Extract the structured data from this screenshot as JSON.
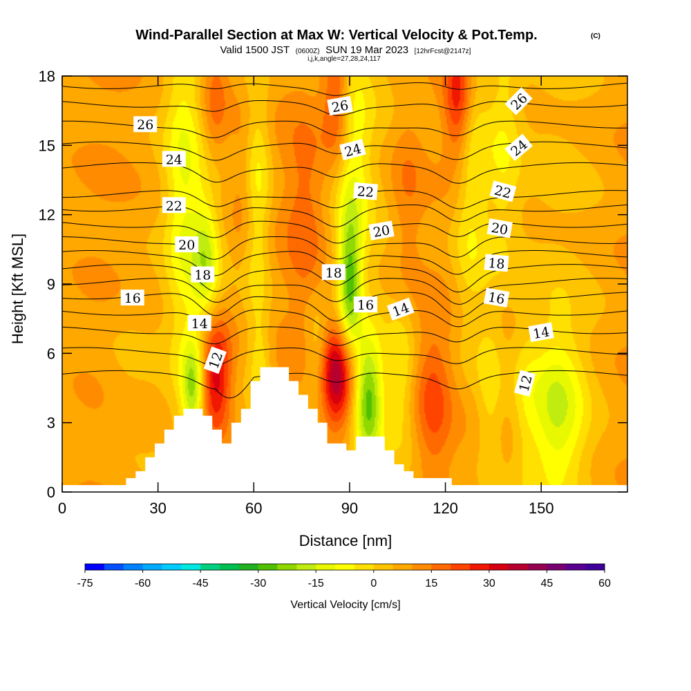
{
  "title": {
    "main": "Wind-Parallel Section at Max W: Vertical Velocity & Pot.Temp.",
    "copyright": "(C)",
    "valid_prefix": "Valid 1500 JST",
    "valid_utc": "(0600Z)",
    "valid_date": "SUN 19 Mar 2023",
    "forecast": "[12hrFcst@2147z]",
    "indices": "i,j,k,angle=27,28,24,117"
  },
  "chart_data": {
    "type": "contour-section",
    "xlabel": "Distance [nm]",
    "ylabel": "Height [Kft MSL]",
    "xlim": [
      0,
      177
    ],
    "ylim": [
      0,
      18
    ],
    "x_ticks": [
      0,
      30,
      60,
      90,
      120,
      150
    ],
    "y_ticks": [
      0,
      3,
      6,
      9,
      12,
      15,
      18
    ],
    "colorbar": {
      "label": "Vertical Velocity [cm/s]",
      "ticks": [
        -75,
        -60,
        -45,
        -30,
        -15,
        0,
        15,
        30,
        45,
        60
      ],
      "tick_labels": [
        "-75",
        "-60",
        "-45",
        "-30",
        "-15",
        "0",
        "15",
        "30",
        "45",
        "60"
      ],
      "min": -75,
      "max": 60,
      "step": 5,
      "colors": [
        "#0000ff",
        "#0050ff",
        "#0082ff",
        "#00aaff",
        "#00ccff",
        "#00e8e0",
        "#00d080",
        "#00c050",
        "#20b020",
        "#50c000",
        "#90d800",
        "#c0ec10",
        "#e8f800",
        "#ffff00",
        "#ffe000",
        "#ffc400",
        "#ffa800",
        "#ff8c00",
        "#ff6a00",
        "#ff4400",
        "#f01800",
        "#d80010",
        "#b8002e",
        "#980050",
        "#780070",
        "#5a0090",
        "#40009a"
      ]
    },
    "vertical_velocity_features": [
      {
        "x": 48,
        "y": 5.0,
        "w": 30,
        "sx": 3.5,
        "sy": 1.8
      },
      {
        "x": 86,
        "y": 5.0,
        "w": 33,
        "sx": 3.5,
        "sy": 1.6
      },
      {
        "x": 116,
        "y": 4.0,
        "w": 14,
        "sx": 4.0,
        "sy": 2.5
      },
      {
        "x": 48,
        "y": 17.0,
        "w": 12,
        "sx": 3.0,
        "sy": 2.0
      },
      {
        "x": 86,
        "y": 17.0,
        "w": 18,
        "sx": 3.0,
        "sy": 2.0
      },
      {
        "x": 124,
        "y": 17.0,
        "w": 22,
        "sx": 3.0,
        "sy": 2.0
      },
      {
        "x": 76,
        "y": 12.0,
        "w": 9,
        "sx": 4.0,
        "sy": 3.0
      },
      {
        "x": 108,
        "y": 13.0,
        "w": 9,
        "sx": 4.0,
        "sy": 3.0
      },
      {
        "x": 57,
        "y": 13.5,
        "w": 7,
        "sx": 3.0,
        "sy": 2.5
      },
      {
        "x": 41,
        "y": 4.5,
        "w": -25,
        "sx": 2.5,
        "sy": 1.5
      },
      {
        "x": 96,
        "y": 4.0,
        "w": -32,
        "sx": 3.0,
        "sy": 1.8
      },
      {
        "x": 155,
        "y": 3.5,
        "w": -20,
        "sx": 6.0,
        "sy": 2.5
      },
      {
        "x": 38,
        "y": 13.0,
        "w": -15,
        "sx": 4.0,
        "sy": 5.0
      },
      {
        "x": 45,
        "y": 10.0,
        "w": -20,
        "sx": 3.0,
        "sy": 2.0
      },
      {
        "x": 61,
        "y": 13.0,
        "w": -15,
        "sx": 3.0,
        "sy": 4.0
      },
      {
        "x": 90,
        "y": 9.0,
        "w": -28,
        "sx": 2.5,
        "sy": 2.0
      },
      {
        "x": 91,
        "y": 14.0,
        "w": -15,
        "sx": 4.0,
        "sy": 4.0
      },
      {
        "x": 128,
        "y": 13.0,
        "w": -15,
        "sx": 4.0,
        "sy": 5.0
      },
      {
        "x": 138,
        "y": 15.0,
        "w": -12,
        "sx": 4.0,
        "sy": 4.0
      },
      {
        "x": 80,
        "y": 6.0,
        "w": -10,
        "sx": 2.5,
        "sy": 1.5
      },
      {
        "x": 62,
        "y": 5.5,
        "w": -10,
        "sx": 2.5,
        "sy": 1.5
      },
      {
        "x": 106,
        "y": 5.0,
        "w": -10,
        "sx": 3.0,
        "sy": 2.0
      },
      {
        "x": 134,
        "y": 4.0,
        "w": -10,
        "sx": 3.0,
        "sy": 3.0
      },
      {
        "x": 145,
        "y": 4.0,
        "w": -6,
        "sx": 3.0,
        "sy": 3.0
      },
      {
        "x": 20,
        "y": 5.0,
        "w": -4,
        "sx": 6.0,
        "sy": 3.0
      }
    ],
    "terrain": {
      "x": [
        0,
        20,
        20,
        23,
        23,
        26,
        26,
        29,
        29,
        32,
        32,
        35,
        35,
        38,
        38,
        41,
        41,
        44,
        44,
        47,
        47,
        50,
        50,
        53,
        53,
        56,
        56,
        59,
        59,
        62,
        62,
        65,
        65,
        68,
        68,
        71,
        71,
        74,
        74,
        77,
        77,
        80,
        80,
        83,
        83,
        86,
        86,
        89,
        89,
        92,
        92,
        95,
        95,
        98,
        98,
        101,
        101,
        104,
        104,
        107,
        107,
        110,
        110,
        113,
        113,
        116,
        116,
        119,
        119,
        122,
        122,
        177
      ],
      "y": [
        0.3,
        0.3,
        0.6,
        0.6,
        0.9,
        0.9,
        1.5,
        1.5,
        2.1,
        2.1,
        2.7,
        2.7,
        3.3,
        3.3,
        3.6,
        3.6,
        3.6,
        3.6,
        3.3,
        3.3,
        2.7,
        2.7,
        2.1,
        2.1,
        3.0,
        3.0,
        3.6,
        3.6,
        4.8,
        4.8,
        5.4,
        5.4,
        5.4,
        5.4,
        5.4,
        5.4,
        4.8,
        4.8,
        4.2,
        4.2,
        3.6,
        3.6,
        3.0,
        3.0,
        2.1,
        2.1,
        2.1,
        2.1,
        1.8,
        1.8,
        2.4,
        2.4,
        2.4,
        2.4,
        2.4,
        2.4,
        1.8,
        1.8,
        1.2,
        1.2,
        0.9,
        0.9,
        0.6,
        0.6,
        0.6,
        0.6,
        0.6,
        0.6,
        0.6,
        0.6,
        0.3,
        0.3
      ]
    },
    "theta_contours": [
      {
        "label": "12",
        "base": 5.1,
        "dip": 0.5,
        "x_bulge": [
          48,
          60
        ]
      },
      {
        "label": "13",
        "base": 6.1,
        "dip": 0.5
      },
      {
        "label": "14",
        "base": 7.0,
        "dip": 0.6
      },
      {
        "label": "15",
        "base": 7.8,
        "dip": 0.8
      },
      {
        "label": "16",
        "base": 8.5,
        "dip": 1.0
      },
      {
        "label": "17",
        "base": 9.1,
        "dip": 0.9
      },
      {
        "label": "18",
        "base": 9.7,
        "dip": 0.9
      },
      {
        "label": "19",
        "base": 10.3,
        "dip": 0.8
      },
      {
        "label": "20",
        "base": 10.9,
        "dip": 0.8
      },
      {
        "label": "21",
        "base": 11.6,
        "dip": 0.7
      },
      {
        "label": "22",
        "base": 12.3,
        "dip": 0.7
      },
      {
        "label": "23",
        "base": 12.9,
        "dip": 0.6
      },
      {
        "label": "24",
        "base": 14.1,
        "dip": 0.6
      },
      {
        "label": "25",
        "base": 15.0,
        "dip": 0.5
      },
      {
        "label": "26",
        "base": 15.9,
        "dip": 0.5
      },
      {
        "label": "27",
        "base": 16.8,
        "dip": 0.4
      },
      {
        "label": "28",
        "base": 17.6,
        "dip": 0.3
      }
    ],
    "contour_labels": [
      {
        "text": "26",
        "x": 26,
        "y": 15.9,
        "angle": 0
      },
      {
        "text": "24",
        "x": 35,
        "y": 14.4,
        "angle": 0
      },
      {
        "text": "22",
        "x": 35,
        "y": 12.4,
        "angle": 0
      },
      {
        "text": "20",
        "x": 39,
        "y": 10.7,
        "angle": 0
      },
      {
        "text": "18",
        "x": 44,
        "y": 9.4,
        "angle": 0
      },
      {
        "text": "16",
        "x": 22,
        "y": 8.4,
        "angle": 0
      },
      {
        "text": "14",
        "x": 43,
        "y": 7.3,
        "angle": 0
      },
      {
        "text": "12",
        "x": 48,
        "y": 5.7,
        "angle": -70
      },
      {
        "text": "26",
        "x": 87,
        "y": 16.7,
        "angle": -10
      },
      {
        "text": "24",
        "x": 91,
        "y": 14.8,
        "angle": -15
      },
      {
        "text": "22",
        "x": 95,
        "y": 13.0,
        "angle": 5
      },
      {
        "text": "20",
        "x": 100,
        "y": 11.3,
        "angle": -10
      },
      {
        "text": "18",
        "x": 85,
        "y": 9.5,
        "angle": 0
      },
      {
        "text": "16",
        "x": 95,
        "y": 8.1,
        "angle": 0
      },
      {
        "text": "14",
        "x": 106,
        "y": 7.9,
        "angle": -20
      },
      {
        "text": "22",
        "x": 138,
        "y": 13.0,
        "angle": 15
      },
      {
        "text": "20",
        "x": 137,
        "y": 11.4,
        "angle": 10
      },
      {
        "text": "18",
        "x": 136,
        "y": 9.9,
        "angle": 5
      },
      {
        "text": "16",
        "x": 136,
        "y": 8.4,
        "angle": 10
      },
      {
        "text": "14",
        "x": 150,
        "y": 6.9,
        "angle": -10
      },
      {
        "text": "26",
        "x": 143,
        "y": 16.9,
        "angle": -45
      },
      {
        "text": "24",
        "x": 143,
        "y": 14.9,
        "angle": -40
      },
      {
        "text": "12",
        "x": 145,
        "y": 4.7,
        "angle": -75
      }
    ]
  }
}
